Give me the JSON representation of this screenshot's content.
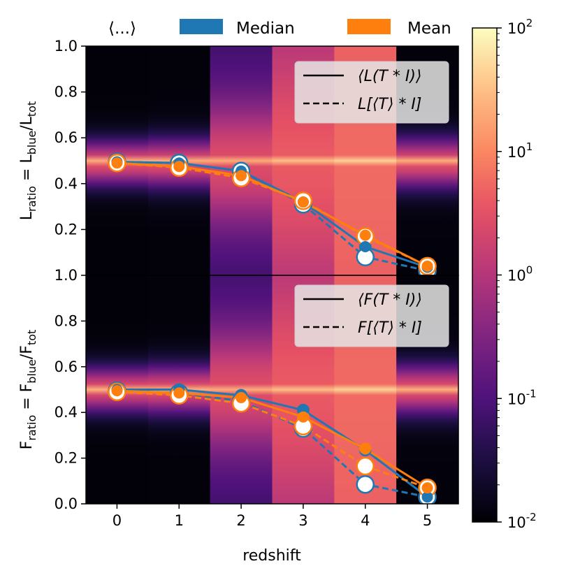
{
  "chart_data": {
    "type": "line",
    "colormap": "magma",
    "x_label": "redshift",
    "x_ticks": [
      "0",
      "1",
      "2",
      "3",
      "4",
      "5"
    ],
    "x_values": [
      0,
      1,
      2,
      3,
      4,
      5
    ],
    "top_legend": {
      "marker_label": "⟨...⟩",
      "entries": [
        {
          "name": "Median",
          "color": "#1f77b4"
        },
        {
          "name": "Mean",
          "color": "#ff7f0e"
        }
      ]
    },
    "colorbar": {
      "scale": "log",
      "range": [
        0.01,
        100
      ],
      "ticks": [
        {
          "base": "10",
          "exp": "-2",
          "value": 0.01
        },
        {
          "base": "10",
          "exp": "-1",
          "value": 0.1
        },
        {
          "base": "10",
          "exp": "0",
          "value": 1
        },
        {
          "base": "10",
          "exp": "1",
          "value": 10
        },
        {
          "base": "10",
          "exp": "2",
          "value": 100
        }
      ]
    },
    "panels": [
      {
        "id": "L",
        "ylabel_main": "L",
        "ylabel_sub": "ratio",
        "ylabel_mid": " = L",
        "ylabel_sub2": "blue",
        "ylabel_mid2": "/L",
        "ylabel_sub3": "tot",
        "ylim": [
          0.0,
          1.0
        ],
        "y_ticks": [
          "1.0",
          "0.8",
          "0.6",
          "0.4",
          "0.2"
        ],
        "y_tick_values": [
          1.0,
          0.8,
          0.6,
          0.4,
          0.2
        ],
        "legend": [
          {
            "style": "solid",
            "label": "⟨L(T * I)⟩"
          },
          {
            "style": "dashed",
            "label": "L[⟨T⟩ * I]"
          }
        ],
        "heatmap_column_level": [
          0.005,
          0.03,
          0.25,
          0.6,
          0.9,
          0.04
        ],
        "heatmap_band_center": [
          0.49,
          0.49,
          0.49,
          0.49,
          0.49,
          0.49
        ],
        "series": [
          {
            "name": "Median",
            "style": "solid",
            "values": [
              0.495,
              0.49,
              0.455,
              0.32,
              0.125,
              0.035
            ]
          },
          {
            "name": "Median",
            "style": "dashed",
            "values": [
              0.495,
              0.49,
              0.455,
              0.31,
              0.08,
              0.02
            ]
          },
          {
            "name": "Mean",
            "style": "solid",
            "values": [
              0.49,
              0.475,
              0.435,
              0.32,
              0.175,
              0.04
            ]
          },
          {
            "name": "Mean",
            "style": "dashed",
            "values": [
              0.49,
              0.47,
              0.425,
              0.325,
              0.17,
              0.04
            ]
          }
        ]
      },
      {
        "id": "F",
        "ylabel_main": "F",
        "ylabel_sub": "ratio",
        "ylabel_mid": " = F",
        "ylabel_sub2": "blue",
        "ylabel_mid2": "/F",
        "ylabel_sub3": "tot",
        "ylim": [
          0.0,
          1.0
        ],
        "y_ticks": [
          "1.0",
          "0.8",
          "0.6",
          "0.4",
          "0.2",
          "0.0"
        ],
        "y_tick_values": [
          1.0,
          0.8,
          0.6,
          0.4,
          0.2,
          0.0
        ],
        "legend": [
          {
            "style": "solid",
            "label": "⟨F(T * I)⟩"
          },
          {
            "style": "dashed",
            "label": "F[⟨T⟩ * I]"
          }
        ],
        "heatmap_column_level": [
          0.005,
          0.03,
          0.25,
          0.6,
          0.9,
          0.04
        ],
        "heatmap_band_center": [
          0.5,
          0.5,
          0.5,
          0.5,
          0.5,
          0.5
        ],
        "series": [
          {
            "name": "Median",
            "style": "solid",
            "values": [
              0.5,
              0.5,
              0.475,
              0.41,
              0.235,
              0.03
            ]
          },
          {
            "name": "Median",
            "style": "dashed",
            "values": [
              0.495,
              0.485,
              0.45,
              0.33,
              0.085,
              0.03
            ]
          },
          {
            "name": "Mean",
            "style": "solid",
            "values": [
              0.495,
              0.485,
              0.465,
              0.38,
              0.24,
              0.07
            ]
          },
          {
            "name": "Mean",
            "style": "dashed",
            "values": [
              0.49,
              0.475,
              0.44,
              0.34,
              0.165,
              0.07
            ]
          }
        ]
      }
    ]
  }
}
